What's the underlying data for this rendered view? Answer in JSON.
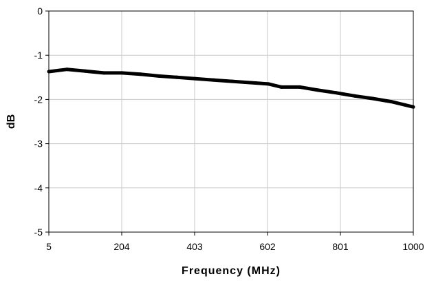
{
  "chart_data": {
    "type": "line",
    "title": "",
    "xlabel": "Frequency (MHz)",
    "ylabel": "dB",
    "xlim": [
      5,
      1000
    ],
    "ylim": [
      -5,
      0
    ],
    "xticks": [
      5,
      204,
      403,
      602,
      801,
      1000
    ],
    "xtick_labels": [
      "5",
      "204",
      "403",
      "602",
      "801",
      "1000"
    ],
    "yticks": [
      0,
      -1,
      -2,
      -3,
      -4,
      -5
    ],
    "ytick_labels": [
      "0",
      "-1",
      "-2",
      "-3",
      "-4",
      "-5"
    ],
    "grid": true,
    "legend": "none",
    "series": [
      {
        "color": "#000000",
        "x": [
          5,
          55,
          105,
          155,
          205,
          255,
          305,
          355,
          405,
          455,
          505,
          555,
          605,
          640,
          690,
          740,
          790,
          840,
          890,
          940,
          1000
        ],
        "y": [
          -1.37,
          -1.32,
          -1.36,
          -1.4,
          -1.4,
          -1.43,
          -1.47,
          -1.5,
          -1.53,
          -1.56,
          -1.59,
          -1.62,
          -1.65,
          -1.72,
          -1.72,
          -1.79,
          -1.85,
          -1.92,
          -1.98,
          -2.05,
          -2.17
        ]
      }
    ]
  }
}
